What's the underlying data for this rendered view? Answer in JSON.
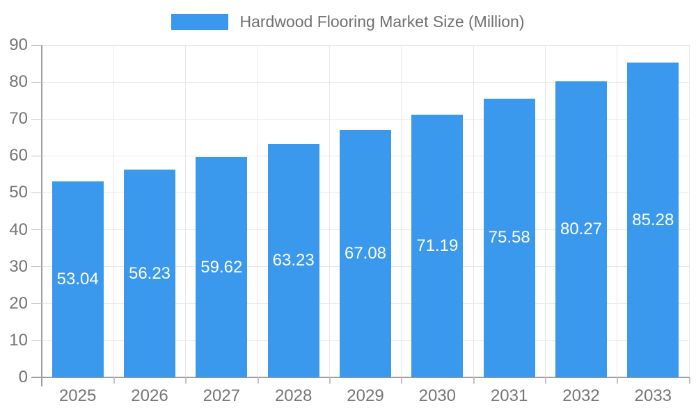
{
  "chart_data": {
    "type": "bar",
    "title": "",
    "categories": [
      "2025",
      "2026",
      "2027",
      "2028",
      "2029",
      "2030",
      "2031",
      "2032",
      "2033"
    ],
    "series": [
      {
        "name": "Hardwood Flooring Market Size (Million)",
        "values": [
          53.04,
          56.23,
          59.62,
          63.23,
          67.08,
          71.19,
          75.58,
          80.27,
          85.28
        ]
      }
    ],
    "xlabel": "",
    "ylabel": "",
    "ylim": [
      0,
      90
    ],
    "ytick_step": 10,
    "yticks": [
      0,
      10,
      20,
      30,
      40,
      50,
      60,
      70,
      80,
      90
    ],
    "grid": true,
    "legend_position": "top-center",
    "value_label_position": "inside-middle",
    "value_label_decimals": 2
  },
  "colors": {
    "bar": "#3B99ED",
    "value_label_text": "#FFFFFF",
    "axis_text": "#757575",
    "legend_text": "#707070",
    "axis_line": "#9E9E9E",
    "tick_mark": "#C2C2C2",
    "gridline": "#E7E7E7",
    "background": "#FFFFFF"
  }
}
